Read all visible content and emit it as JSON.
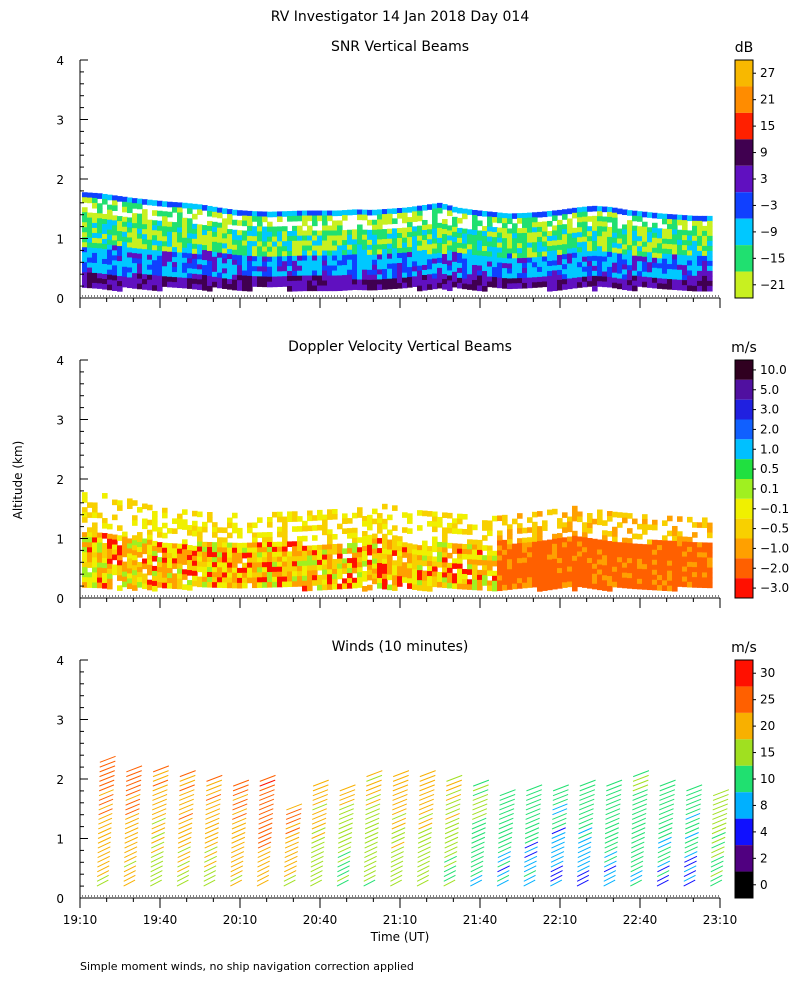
{
  "figure": {
    "title": "RV Investigator  14 Jan 2018 Day 014",
    "ylabel": "Altitude (km)",
    "xlabel": "Time (UT)",
    "footnote": "Simple moment winds, no ship navigation correction applied"
  },
  "chart_data": [
    {
      "type": "heatmap",
      "title": "SNR Vertical Beams",
      "ylim": [
        0,
        4
      ],
      "xlim": [
        "19:10",
        "23:10"
      ],
      "yticks": [
        "0",
        "1",
        "2",
        "3",
        "4"
      ],
      "cloud_top_km": [
        1.78,
        1.76,
        1.72,
        1.68,
        1.65,
        1.62,
        1.6,
        1.57,
        1.52,
        1.48,
        1.46,
        1.45,
        1.46,
        1.47,
        1.47,
        1.47,
        1.49,
        1.48,
        1.5,
        1.52,
        1.56,
        1.6,
        1.52,
        1.48,
        1.45,
        1.42,
        1.43,
        1.45,
        1.48,
        1.52,
        1.55,
        1.53,
        1.48,
        1.45,
        1.42,
        1.4,
        1.38,
        1.38
      ],
      "colorbar": {
        "unit": "dB",
        "labels": [
          "27",
          "21",
          "15",
          "9",
          "3",
          "−3",
          "−9",
          "−15",
          "−21"
        ],
        "colors": [
          "#f8b800",
          "#ff8c00",
          "#ff2000",
          "#400050",
          "#6010c0",
          "#1040ff",
          "#00c8ff",
          "#20e070",
          "#c8f020"
        ]
      }
    },
    {
      "type": "heatmap",
      "title": "Doppler Velocity Vertical Beams",
      "ylim": [
        0,
        4
      ],
      "xlim": [
        "19:10",
        "23:10"
      ],
      "yticks": [
        "0",
        "1",
        "2",
        "3",
        "4"
      ],
      "cloud_top_km": [
        1.78,
        1.77,
        1.72,
        1.6,
        1.52,
        1.5,
        1.45,
        1.44,
        1.43,
        1.44,
        1.45,
        1.46,
        1.48,
        1.5,
        1.52,
        1.6,
        1.55,
        1.48,
        1.45,
        1.42,
        1.4,
        1.38,
        1.42,
        1.45,
        1.5,
        1.55,
        1.5,
        1.45,
        1.42,
        1.4,
        1.38,
        1.36,
        1.35
      ],
      "colorbar": {
        "unit": "m/s",
        "labels": [
          "10.0",
          "5.0",
          "3.0",
          "2.0",
          "1.0",
          "0.5",
          "0.1",
          "−0.1",
          "−0.5",
          "−1.0",
          "−2.0",
          "−3.0"
        ],
        "colors": [
          "#300020",
          "#5010a0",
          "#2020e0",
          "#1060ff",
          "#00c0ff",
          "#20e040",
          "#a0f020",
          "#f0f000",
          "#f8d000",
          "#ffa000",
          "#ff6000",
          "#ff1000"
        ]
      }
    },
    {
      "type": "scatter",
      "title": "Winds (10 minutes)",
      "ylim": [
        0,
        4
      ],
      "xlim": [
        "19:10",
        "23:10"
      ],
      "yticks": [
        "0",
        "1",
        "2",
        "3",
        "4"
      ],
      "xticks": [
        "19:10",
        "19:40",
        "20:10",
        "20:40",
        "21:10",
        "21:40",
        "22:10",
        "22:40",
        "23:10"
      ],
      "profile_times": [
        "19:17",
        "19:27",
        "19:37",
        "19:47",
        "19:57",
        "20:07",
        "20:17",
        "20:27",
        "20:37",
        "20:47",
        "20:57",
        "21:07",
        "21:17",
        "21:27",
        "21:37",
        "21:47",
        "21:57",
        "22:07",
        "22:17",
        "22:27",
        "22:37",
        "22:47",
        "22:57",
        "23:07"
      ],
      "profile_top_km": [
        2.3,
        2.2,
        2.15,
        2.05,
        1.98,
        1.9,
        2.0,
        1.55,
        1.95,
        1.85,
        2.05,
        2.05,
        2.05,
        2.0,
        1.9,
        1.75,
        1.85,
        1.85,
        1.9,
        1.95,
        2.05,
        1.9,
        1.85,
        1.75
      ],
      "low_level_speed_ms": [
        20,
        20,
        17,
        18,
        18,
        19,
        22,
        18,
        15,
        13,
        14,
        16,
        15,
        13,
        10,
        8,
        7,
        6,
        7,
        8,
        9,
        8,
        7,
        12
      ],
      "colorbar": {
        "unit": "m/s",
        "labels": [
          "30",
          "25",
          "20",
          "15",
          "10",
          "8",
          "4",
          "2",
          "0"
        ],
        "colors": [
          "#ff1000",
          "#ff6000",
          "#f8b000",
          "#a0e020",
          "#20e070",
          "#00b0ff",
          "#1010ff",
          "#500080",
          "#000000"
        ]
      }
    }
  ]
}
